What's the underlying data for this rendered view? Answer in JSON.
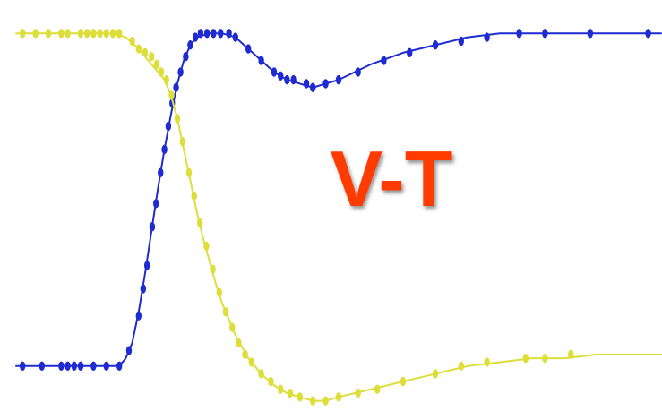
{
  "chart_data": {
    "type": "line",
    "title": "",
    "annotation": {
      "text": "V-T",
      "color": "#ff3b00",
      "shadow": "#555555"
    },
    "xlabel": "",
    "ylabel": "",
    "grid": false,
    "legend": "none",
    "xlim": [
      0,
      100
    ],
    "ylim": [
      0,
      100
    ],
    "series": [
      {
        "color": "#1f2bd0",
        "line": [
          [
            0,
            10
          ],
          [
            3,
            10
          ],
          [
            6,
            10
          ],
          [
            9,
            10
          ],
          [
            12,
            10
          ],
          [
            15,
            10
          ],
          [
            16,
            10
          ],
          [
            17,
            12
          ],
          [
            18,
            16
          ],
          [
            19,
            24
          ],
          [
            20,
            34
          ],
          [
            21,
            45
          ],
          [
            22,
            56
          ],
          [
            23,
            66
          ],
          [
            24,
            75
          ],
          [
            25,
            83
          ],
          [
            26,
            89
          ],
          [
            27,
            93
          ],
          [
            28,
            95
          ],
          [
            30,
            96
          ],
          [
            32,
            96
          ],
          [
            34,
            95
          ],
          [
            36,
            92
          ],
          [
            38,
            89
          ],
          [
            40,
            86
          ],
          [
            42,
            84
          ],
          [
            44,
            83
          ],
          [
            46,
            82
          ],
          [
            48,
            83
          ],
          [
            50,
            84
          ],
          [
            55,
            88
          ],
          [
            60,
            91
          ],
          [
            65,
            93
          ],
          [
            70,
            95
          ],
          [
            75,
            96
          ],
          [
            80,
            96
          ],
          [
            85,
            96
          ],
          [
            90,
            96
          ],
          [
            95,
            96
          ],
          [
            100,
            96
          ]
        ],
        "markers": [
          [
            1,
            10
          ],
          [
            4,
            10
          ],
          [
            7,
            10
          ],
          [
            8,
            10
          ],
          [
            9,
            10
          ],
          [
            10,
            10
          ],
          [
            12,
            10
          ],
          [
            14,
            10
          ],
          [
            16,
            10
          ],
          [
            17.5,
            14
          ],
          [
            19,
            23
          ],
          [
            19.7,
            30
          ],
          [
            20.3,
            36
          ],
          [
            21.1,
            46
          ],
          [
            21.7,
            52
          ],
          [
            22.4,
            60
          ],
          [
            23,
            66
          ],
          [
            23.6,
            72
          ],
          [
            24.2,
            78
          ],
          [
            24.8,
            82
          ],
          [
            25.5,
            86
          ],
          [
            26.3,
            90
          ],
          [
            27,
            93
          ],
          [
            27.8,
            95
          ],
          [
            28.6,
            96
          ],
          [
            29.6,
            96
          ],
          [
            30.6,
            96
          ],
          [
            31.7,
            96
          ],
          [
            33,
            96
          ],
          [
            34,
            95
          ],
          [
            36,
            92
          ],
          [
            38,
            89
          ],
          [
            40,
            86
          ],
          [
            41,
            85
          ],
          [
            42,
            84
          ],
          [
            43,
            84
          ],
          [
            45,
            83
          ],
          [
            46,
            82
          ],
          [
            48,
            83
          ],
          [
            50,
            84
          ],
          [
            53,
            86
          ],
          [
            57,
            89
          ],
          [
            61,
            91
          ],
          [
            65,
            93
          ],
          [
            69,
            94
          ],
          [
            73,
            95
          ],
          [
            78,
            96
          ],
          [
            82,
            96
          ],
          [
            89,
            96
          ],
          [
            98,
            96
          ]
        ]
      },
      {
        "color": "#dede3b",
        "line": [
          [
            0,
            96
          ],
          [
            5,
            96
          ],
          [
            10,
            96
          ],
          [
            15,
            96
          ],
          [
            17,
            95
          ],
          [
            19,
            92
          ],
          [
            20,
            90
          ],
          [
            21,
            88
          ],
          [
            22,
            86
          ],
          [
            23,
            84
          ],
          [
            24,
            80
          ],
          [
            25,
            74
          ],
          [
            26,
            66
          ],
          [
            27,
            58
          ],
          [
            28,
            50
          ],
          [
            29,
            43
          ],
          [
            30,
            37
          ],
          [
            31,
            31
          ],
          [
            32,
            26
          ],
          [
            33,
            22
          ],
          [
            34,
            18
          ],
          [
            35,
            15
          ],
          [
            36,
            12
          ],
          [
            37,
            10
          ],
          [
            38,
            8
          ],
          [
            40,
            5
          ],
          [
            42,
            3
          ],
          [
            44,
            2
          ],
          [
            46,
            1
          ],
          [
            48,
            1
          ],
          [
            50,
            2
          ],
          [
            55,
            4
          ],
          [
            60,
            6
          ],
          [
            65,
            8
          ],
          [
            70,
            10
          ],
          [
            75,
            11
          ],
          [
            80,
            12
          ],
          [
            85,
            12
          ],
          [
            90,
            13
          ],
          [
            95,
            13
          ],
          [
            100,
            13
          ]
        ],
        "markers": [
          [
            1,
            96
          ],
          [
            3,
            96
          ],
          [
            5,
            96
          ],
          [
            7,
            96
          ],
          [
            8,
            96
          ],
          [
            10,
            96
          ],
          [
            11,
            96
          ],
          [
            12,
            96
          ],
          [
            13,
            96
          ],
          [
            14,
            96
          ],
          [
            15,
            96
          ],
          [
            16,
            96
          ],
          [
            18,
            94
          ],
          [
            19,
            92
          ],
          [
            20,
            91
          ],
          [
            21,
            90
          ],
          [
            21.8,
            88
          ],
          [
            22.5,
            86
          ],
          [
            23.3,
            84
          ],
          [
            24.1,
            80
          ],
          [
            25,
            74
          ],
          [
            25.8,
            68
          ],
          [
            26.8,
            60
          ],
          [
            27.6,
            54
          ],
          [
            28.5,
            47
          ],
          [
            29.5,
            41
          ],
          [
            30.5,
            35
          ],
          [
            31.5,
            29
          ],
          [
            32.5,
            24
          ],
          [
            33.5,
            20
          ],
          [
            34.5,
            16
          ],
          [
            35.5,
            13
          ],
          [
            36.5,
            11
          ],
          [
            38,
            8
          ],
          [
            39.5,
            6
          ],
          [
            41,
            4
          ],
          [
            42.5,
            3
          ],
          [
            44,
            2
          ],
          [
            46,
            1
          ],
          [
            48,
            1
          ],
          [
            50,
            2
          ],
          [
            53,
            3
          ],
          [
            56,
            4
          ],
          [
            60,
            6
          ],
          [
            65,
            8
          ],
          [
            69,
            10
          ],
          [
            73,
            11
          ],
          [
            79,
            12
          ],
          [
            82,
            12
          ],
          [
            86,
            13
          ]
        ]
      }
    ]
  }
}
